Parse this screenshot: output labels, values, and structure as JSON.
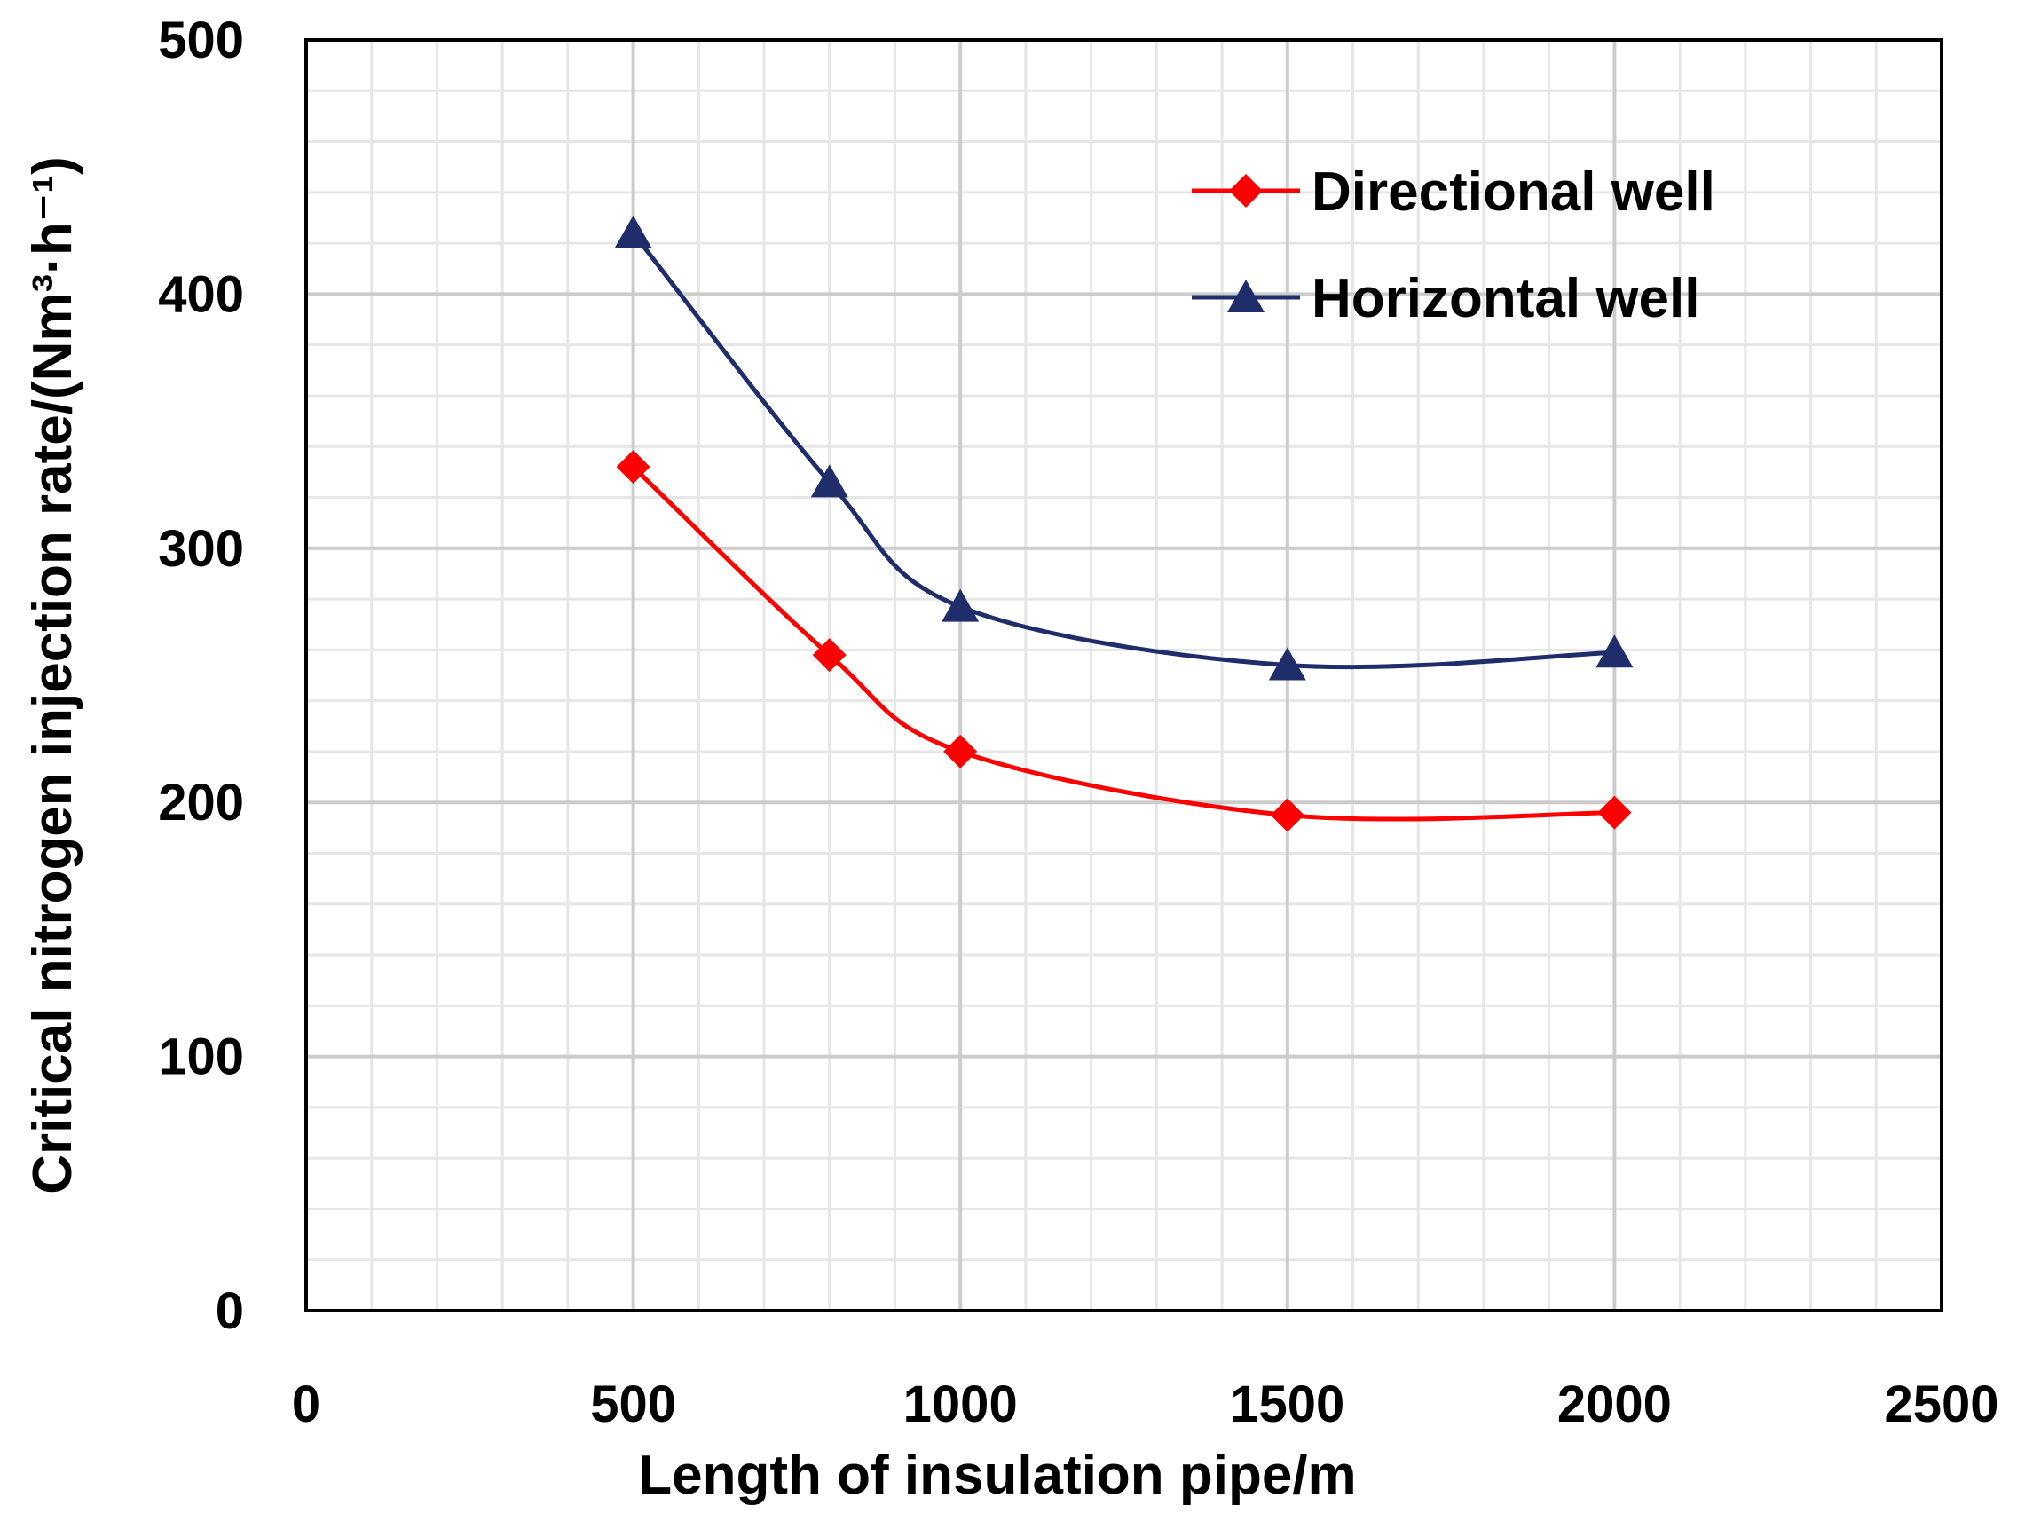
{
  "chart_data": {
    "type": "line",
    "title": "",
    "xlabel": "Length of insulation pipe/m",
    "ylabel": "Critical nitrogen injection rate/(Nm³·h⁻¹)",
    "xlim": [
      0,
      2500
    ],
    "ylim": [
      0,
      500
    ],
    "x_major_ticks": [
      0,
      500,
      1000,
      1500,
      2000,
      2500
    ],
    "y_major_ticks": [
      0,
      100,
      200,
      300,
      400,
      500
    ],
    "x_minor_step": 100,
    "y_minor_step": 20,
    "grid": true,
    "smooth": true,
    "legend_position": "top-right",
    "series": [
      {
        "name": "Directional well",
        "color": "#ff0000",
        "marker": "diamond",
        "x": [
          500,
          800,
          1000,
          1500,
          2000
        ],
        "y": [
          332,
          258,
          220,
          195,
          196
        ]
      },
      {
        "name": "Horizontal well",
        "color": "#1f2d6b",
        "marker": "triangle",
        "x": [
          500,
          800,
          1000,
          1500,
          2000
        ],
        "y": [
          424,
          326,
          277,
          254,
          259
        ]
      }
    ]
  }
}
